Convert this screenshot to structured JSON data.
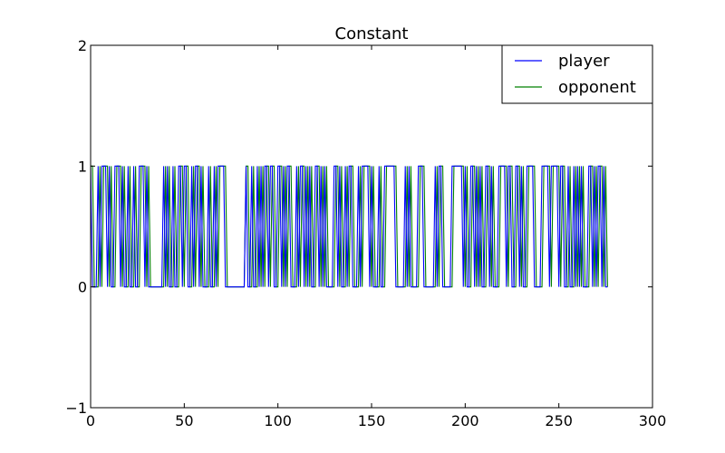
{
  "chart_data": {
    "type": "line",
    "title": "Constant",
    "xlabel": "",
    "ylabel": "",
    "xlim": [
      0,
      300
    ],
    "ylim": [
      -1,
      2
    ],
    "x_ticks": [
      "0",
      "50",
      "100",
      "150",
      "200",
      "250",
      "300"
    ],
    "y_ticks": [
      "−1",
      "0",
      "1",
      "2"
    ],
    "grid": false,
    "legend_position": "top-right",
    "series": [
      {
        "name": "player",
        "color": "#0000ff",
        "x_start": 0,
        "values": [
          1,
          0,
          0,
          0,
          1,
          0,
          1,
          1,
          1,
          0,
          1,
          0,
          0,
          1,
          1,
          1,
          0,
          1,
          0,
          0,
          1,
          0,
          0,
          1,
          0,
          0,
          1,
          1,
          1,
          0,
          1,
          0,
          0,
          0,
          0,
          0,
          0,
          0,
          0,
          1,
          0,
          1,
          0,
          0,
          1,
          0,
          0,
          1,
          1,
          0,
          1,
          1,
          0,
          0,
          1,
          0,
          1,
          1,
          0,
          1,
          0,
          0,
          0,
          1,
          0,
          0,
          1,
          0,
          1,
          1,
          1,
          1,
          0,
          0,
          0,
          0,
          0,
          0,
          0,
          0,
          0,
          0,
          0,
          1,
          0,
          0,
          1,
          0,
          0,
          1,
          0,
          1,
          0,
          1,
          1,
          0,
          1,
          1,
          0,
          0,
          1,
          1,
          0,
          1,
          0,
          1,
          1,
          0,
          0,
          0,
          1,
          0,
          1,
          1,
          0,
          1,
          0,
          1,
          0,
          0,
          1,
          1,
          0,
          1,
          0,
          1,
          0,
          0,
          0,
          0,
          1,
          1,
          0,
          1,
          0,
          0,
          1,
          0,
          1,
          1,
          0,
          0,
          0,
          1,
          0,
          1,
          1,
          1,
          1,
          0,
          1,
          0,
          0,
          0,
          1,
          0,
          0,
          1,
          1,
          1,
          1,
          1,
          1,
          0,
          0,
          0,
          0,
          0,
          1,
          0,
          1,
          0,
          0,
          0,
          0,
          1,
          1,
          1,
          0,
          0,
          0,
          0,
          0,
          0,
          1,
          0,
          1,
          1,
          0,
          0,
          0,
          0,
          0,
          1,
          1,
          1,
          1,
          1,
          1,
          0,
          1,
          0,
          0,
          1,
          1,
          0,
          1,
          0,
          1,
          0,
          0,
          1,
          1,
          0,
          1,
          0,
          0,
          0,
          1,
          1,
          1,
          1,
          0,
          1,
          1,
          0,
          0,
          1,
          1,
          0,
          1,
          0,
          0,
          1,
          1,
          1,
          1,
          0,
          0,
          0,
          0,
          1,
          1,
          1,
          1,
          0,
          1,
          1,
          1,
          1,
          0,
          1,
          1,
          0,
          0,
          1,
          0,
          0,
          1,
          0,
          1,
          0,
          1,
          0,
          0,
          0,
          1,
          1,
          0,
          1,
          0,
          1,
          1,
          0,
          1,
          0,
          0
        ]
      },
      {
        "name": "opponent",
        "color": "#008000",
        "x_start": 0,
        "values": [
          1,
          1,
          0,
          0,
          0,
          1,
          0,
          1,
          1,
          1,
          0,
          1,
          0,
          0,
          1,
          1,
          1,
          0,
          1,
          0,
          0,
          1,
          0,
          0,
          1,
          0,
          0,
          1,
          1,
          1,
          0,
          1,
          0,
          0,
          0,
          0,
          0,
          0,
          0,
          0,
          1,
          0,
          1,
          0,
          0,
          1,
          0,
          0,
          1,
          1,
          0,
          1,
          1,
          0,
          0,
          1,
          0,
          1,
          1,
          0,
          1,
          0,
          0,
          0,
          1,
          0,
          0,
          1,
          0,
          1,
          1,
          1,
          1,
          0,
          0,
          0,
          0,
          0,
          0,
          0,
          0,
          0,
          0,
          1,
          1,
          0,
          0,
          1,
          0,
          0,
          1,
          0,
          1,
          0,
          1,
          1,
          0,
          1,
          1,
          0,
          0,
          1,
          1,
          0,
          1,
          0,
          1,
          1,
          0,
          0,
          0,
          1,
          0,
          1,
          1,
          0,
          1,
          0,
          1,
          0,
          0,
          1,
          1,
          0,
          1,
          0,
          1,
          0,
          0,
          0,
          0,
          1,
          1,
          0,
          1,
          0,
          0,
          1,
          0,
          1,
          1,
          0,
          0,
          0,
          1,
          0,
          1,
          1,
          1,
          1,
          0,
          1,
          0,
          0,
          0,
          1,
          0,
          0,
          1,
          1,
          1,
          1,
          1,
          1,
          0,
          0,
          0,
          0,
          0,
          1,
          0,
          1,
          0,
          0,
          0,
          0,
          1,
          1,
          1,
          0,
          0,
          0,
          0,
          0,
          0,
          1,
          0,
          1,
          1,
          0,
          0,
          0,
          0,
          0,
          1,
          1,
          1,
          1,
          1,
          1,
          0,
          1,
          0,
          0,
          1,
          1,
          0,
          1,
          0,
          1,
          0,
          0,
          1,
          1,
          0,
          1,
          0,
          0,
          0,
          1,
          1,
          1,
          1,
          0,
          1,
          1,
          0,
          0,
          1,
          1,
          0,
          1,
          0,
          0,
          1,
          1,
          1,
          1,
          0,
          0,
          0,
          0,
          1,
          1,
          1,
          1,
          0,
          1,
          1,
          1,
          1,
          0,
          1,
          1,
          0,
          0,
          1,
          0,
          0,
          1,
          0,
          1,
          0,
          1,
          0,
          0,
          0,
          1,
          1,
          0,
          1,
          0,
          1,
          1,
          0,
          1,
          0
        ]
      }
    ]
  }
}
